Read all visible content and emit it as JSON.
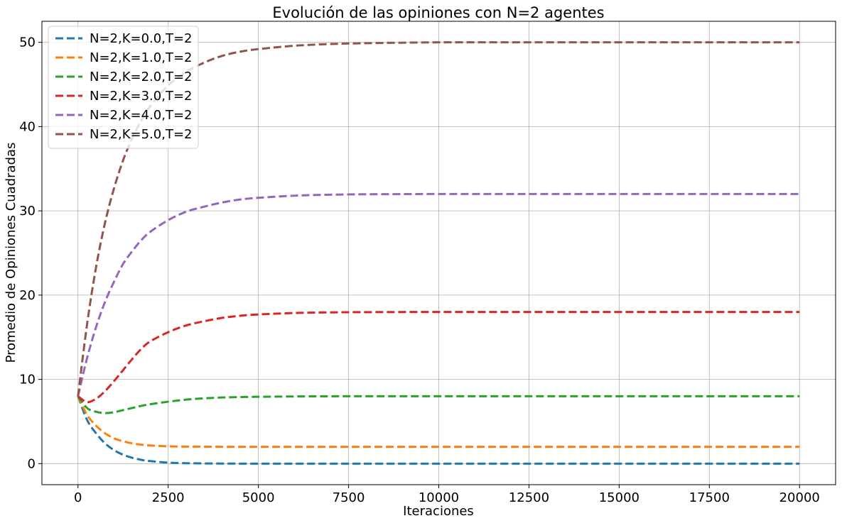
{
  "chart_data": {
    "type": "line",
    "title": "Evolución de las opiniones con N=2 agentes",
    "xlabel": "Iteraciones",
    "ylabel": "Promedio de Opiniones Cuadradas",
    "xlim": [
      -1000,
      21000
    ],
    "ylim": [
      -2.5,
      52.5
    ],
    "xticks": [
      0,
      2500,
      5000,
      7500,
      10000,
      12500,
      15000,
      17500,
      20000
    ],
    "yticks": [
      0,
      10,
      20,
      30,
      40,
      50
    ],
    "grid": true,
    "legend_position": "top-left",
    "line_style": "dashed",
    "x": [
      0,
      250,
      500,
      750,
      1000,
      1250,
      1500,
      1750,
      2000,
      2500,
      3000,
      3500,
      4000,
      4500,
      5000,
      6000,
      7000,
      8000,
      10000,
      12500,
      15000,
      17500,
      20000
    ],
    "series": [
      {
        "name": "N=2,K=0.0,T=2",
        "color": "#1f77b4",
        "values": [
          8.0,
          5.2,
          3.6,
          2.4,
          1.6,
          1.05,
          0.7,
          0.45,
          0.3,
          0.12,
          0.05,
          0.02,
          0.01,
          0,
          0,
          0,
          0,
          0,
          0,
          0,
          0,
          0,
          0
        ]
      },
      {
        "name": "N=2,K=1.0,T=2",
        "color": "#ff7f0e",
        "values": [
          8.0,
          5.8,
          4.5,
          3.6,
          3.0,
          2.65,
          2.4,
          2.25,
          2.15,
          2.05,
          2.02,
          2.01,
          2.0,
          2.0,
          2.0,
          2.0,
          2.0,
          2.0,
          2.0,
          2.0,
          2.0,
          2.0,
          2.0
        ]
      },
      {
        "name": "N=2,K=2.0,T=2",
        "color": "#2ca02c",
        "values": [
          8.0,
          6.6,
          6.15,
          6.0,
          6.1,
          6.35,
          6.6,
          6.85,
          7.05,
          7.35,
          7.6,
          7.75,
          7.85,
          7.9,
          7.93,
          7.97,
          7.99,
          8.0,
          8.0,
          8.0,
          8.0,
          8.0,
          8.0
        ]
      },
      {
        "name": "N=2,K=3.0,T=2",
        "color": "#d62728",
        "values": [
          8.0,
          7.3,
          7.7,
          8.6,
          9.8,
          11.1,
          12.4,
          13.6,
          14.5,
          15.6,
          16.4,
          16.9,
          17.3,
          17.55,
          17.7,
          17.88,
          17.95,
          17.98,
          18.0,
          18.0,
          18.0,
          18.0,
          18.0
        ]
      },
      {
        "name": "N=2,K=4.0,T=2",
        "color": "#9467bd",
        "values": [
          8.0,
          12.5,
          16.2,
          19.2,
          21.6,
          23.7,
          25.2,
          26.5,
          27.5,
          28.9,
          29.9,
          30.5,
          31.0,
          31.35,
          31.55,
          31.8,
          31.92,
          31.97,
          32.0,
          32.0,
          32.0,
          32.0,
          32.0
        ]
      },
      {
        "name": "N=2,K=5.0,T=2",
        "color": "#8c564b",
        "values": [
          8.0,
          16.5,
          23.3,
          28.6,
          32.7,
          36.0,
          38.6,
          40.7,
          42.4,
          44.9,
          46.5,
          47.6,
          48.4,
          48.9,
          49.2,
          49.6,
          49.8,
          49.9,
          50.0,
          50.0,
          50.0,
          50.0,
          50.0
        ]
      }
    ]
  }
}
